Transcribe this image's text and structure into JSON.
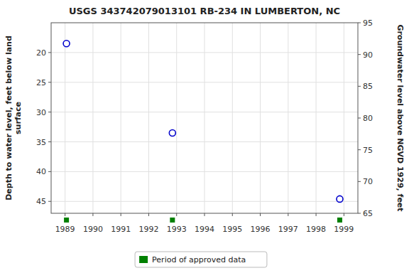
{
  "chart_data": {
    "type": "scatter",
    "title": "USGS 343742079013101 RB-234 IN LUMBERTON, NC",
    "series": [
      {
        "color": "#0000cc",
        "marker": "circle",
        "x": [
          1989.05,
          1992.85,
          1998.85
        ],
        "values": [
          18.5,
          33.5,
          44.6
        ]
      },
      {
        "name": "Period of approved data",
        "color": "#008000",
        "marker": "square",
        "x": [
          1989.05,
          1992.85,
          1998.85
        ]
      }
    ],
    "xlim": [
      1988.5,
      1999.5
    ],
    "xticks": [
      1989,
      1990,
      1991,
      1992,
      1993,
      1994,
      1995,
      1996,
      1997,
      1998,
      1999
    ],
    "ylim": [
      47,
      15
    ],
    "yticks": [
      20,
      25,
      30,
      35,
      40,
      45
    ],
    "y2lim": [
      65,
      95
    ],
    "y2ticks": [
      65,
      70,
      75,
      80,
      85,
      90,
      95
    ],
    "ylabel": "Depth to water level, feet below land\n surface",
    "y2label": "Groundwater level above NGVD 1929, feet",
    "grid": true,
    "legend": "bottom"
  }
}
